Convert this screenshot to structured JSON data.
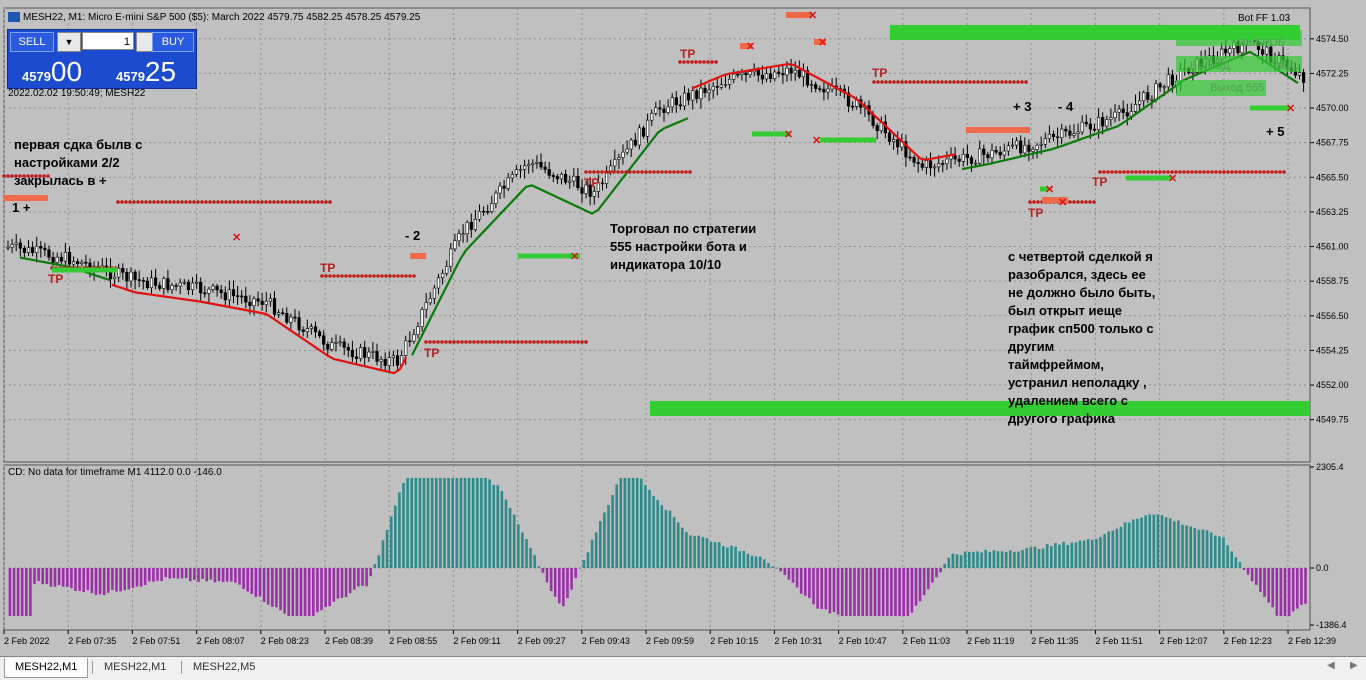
{
  "window": {
    "symbol_title": "MESH22, M1:  Micro E-mini S&P 500 ($5): March 2022   4579.75 4582.25 4578.25 4579.25",
    "bot_title": "Bot FF 1.03",
    "datetime": "2022.02.02 19:50:49; MESH22"
  },
  "trade_panel": {
    "sell_label": "SELL",
    "buy_label": "BUY",
    "lot": "1",
    "bid_small": "4579",
    "bid_big": "00",
    "ask_small": "4579",
    "ask_big": "25"
  },
  "price_axis": {
    "labels": [
      "4574.50",
      "4572.25",
      "4570.00",
      "4567.75",
      "4565.50",
      "4563.25",
      "4561.00",
      "4558.75",
      "4556.50",
      "4554.25",
      "4552.00",
      "4549.75"
    ],
    "ymin": 4547.0,
    "ymax": 4576.5
  },
  "cd_axis": {
    "labels": [
      "2305.4",
      "0.0",
      "-1386.4"
    ],
    "title": "CD: No data for timeframe M1 4112.0 0.0 -146.0"
  },
  "time_axis": {
    "labels": [
      "2 Feb 2022",
      "2 Feb 07:35",
      "2 Feb 07:51",
      "2 Feb 08:07",
      "2 Feb 08:23",
      "2 Feb 08:39",
      "2 Feb 08:55",
      "2 Feb 09:11",
      "2 Feb 09:27",
      "2 Feb 09:43",
      "2 Feb 09:59",
      "2 Feb 10:15",
      "2 Feb 10:31",
      "2 Feb 10:47",
      "2 Feb 11:03",
      "2 Feb 11:19",
      "2 Feb 11:35",
      "2 Feb 11:51",
      "2 Feb 12:07",
      "2 Feb 12:23",
      "2 Feb 12:39"
    ]
  },
  "chart_labels": {
    "tp": "TP",
    "trade_marks": [
      "1 +",
      "- 2",
      "+ 3",
      "- 4",
      "+ 5"
    ],
    "zone_labels": [
      "ВЫБРОБ",
      "ВЫХОД",
      "SELL",
      "Выход 555"
    ]
  },
  "notes": {
    "note1": "первая сдка былв с\nнастройками 2/2\nзакрылась в +",
    "note2": "Торговал по стратегии\n555 настройки бота и\nиндикатора 10/10",
    "note3": "с четвертой сделкой я\nразобрался, здесь ее\nне должно было быть,\nбыл открыт иеще\nграфик сп500 только с\nдругим\nтаймфреймом,\nустранил неполадку ,\nудалением всего с\nдругого графика"
  },
  "tabs": [
    "MESH22,M1",
    "MESH22,M1",
    "MESH22,M5"
  ],
  "colors": {
    "bg": "#c0c0c0",
    "grid": "#8f8f8f",
    "candle": "#000000",
    "ma_green": "#0a7a0a",
    "ma_red": "#e01010",
    "zone_green": "#33cc33",
    "tp_dots": "#c21a1a",
    "cd_pos": "#2e8b8b",
    "cd_neg": "#9b30a8"
  },
  "chart_data": {
    "type": "line",
    "series": [
      {
        "x": [
          0,
          16,
          32,
          48,
          64,
          80,
          96,
          112,
          128,
          144,
          160,
          176,
          192,
          208,
          224,
          240,
          256,
          272,
          288,
          304,
          320
        ],
        "values": [
          4561.0,
          4560.2,
          4558.8,
          4558.2,
          4557.4,
          4554.5,
          4553.5,
          4562.0,
          4566.5,
          4564.5,
          4570.0,
          4571.8,
          4572.5,
          4570.2,
          4566.2,
          4567.0,
          4568.0,
          4569.5,
          4572.5,
          4574.3,
          4571.5
        ]
      }
    ]
  }
}
